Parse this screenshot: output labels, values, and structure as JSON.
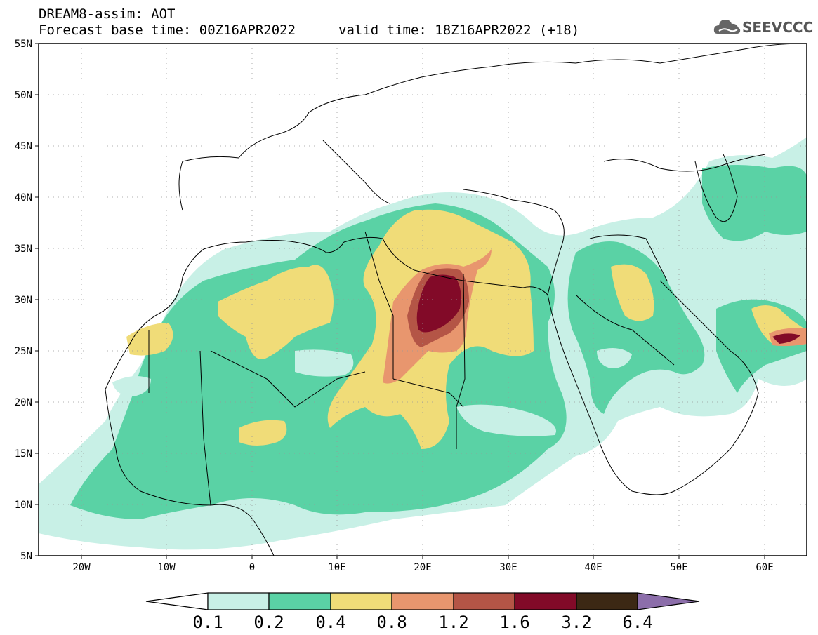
{
  "header": {
    "line1": "DREAM8-assim: AOT",
    "line2": "Forecast base time: 00Z16APR2022",
    "line3": "valid time: 18Z16APR2022 (+18)",
    "logo_text": "SEEVCCC"
  },
  "map": {
    "lat_labels": [
      "55N",
      "50N",
      "45N",
      "40N",
      "35N",
      "30N",
      "25N",
      "20N",
      "15N",
      "10N",
      "5N"
    ],
    "lon_labels": [
      "20W",
      "10W",
      "0",
      "10E",
      "20E",
      "30E",
      "40E",
      "50E",
      "60E"
    ],
    "lat_range": [
      5,
      55
    ],
    "lon_range": [
      -25,
      65
    ]
  },
  "legend": {
    "labels": [
      "0.1",
      "0.2",
      "0.4",
      "0.8",
      "1.2",
      "1.6",
      "3.2",
      "6.4"
    ],
    "colors": [
      "#ffffff",
      "#c8f0e6",
      "#5ad2a5",
      "#f0dc78",
      "#e8966e",
      "#b45546",
      "#820a28",
      "#3c2814",
      "#8c6eaa"
    ]
  }
}
